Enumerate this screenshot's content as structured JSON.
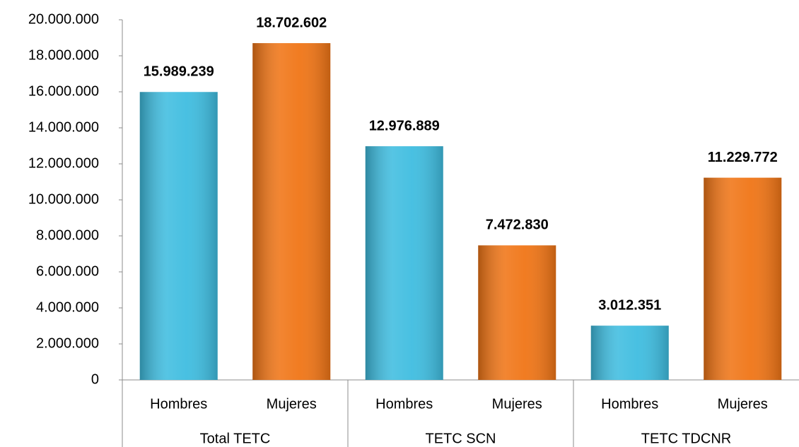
{
  "chart_data": {
    "type": "bar",
    "categories": [
      "Hombres",
      "Mujeres",
      "Hombres",
      "Mujeres",
      "Hombres",
      "Mujeres"
    ],
    "groups": [
      "Total TETC",
      "TETC SCN",
      "TETC TDCNR"
    ],
    "values": [
      15989239,
      18702602,
      12976889,
      7472830,
      3012351,
      11229772
    ],
    "value_labels": [
      "15.989.239",
      "18.702.602",
      "12.976.889",
      "7.472.830",
      "3.012.351",
      "11.229.772"
    ],
    "colors": [
      "#3fbde0",
      "#f07516",
      "#3fbde0",
      "#f07516",
      "#3fbde0",
      "#f07516"
    ],
    "ylim": [
      0,
      20000000
    ],
    "yticks": [
      0,
      {
        "value": 2000000,
        "label": "2.000.000"
      },
      {
        "value": 4000000,
        "label": "4.000.000"
      },
      {
        "value": 6000000,
        "label": "6.000.000"
      },
      {
        "value": 8000000,
        "label": "8.000.000"
      },
      {
        "value": 10000000,
        "label": "10.000.000"
      },
      {
        "value": 12000000,
        "label": "12.000.000"
      },
      {
        "value": 14000000,
        "label": "14.000.000"
      },
      {
        "value": 16000000,
        "label": "16.000.000"
      },
      {
        "value": 18000000,
        "label": "18.000.000"
      },
      {
        "value": 20000000,
        "label": "20.000.000"
      }
    ],
    "grid": false
  }
}
